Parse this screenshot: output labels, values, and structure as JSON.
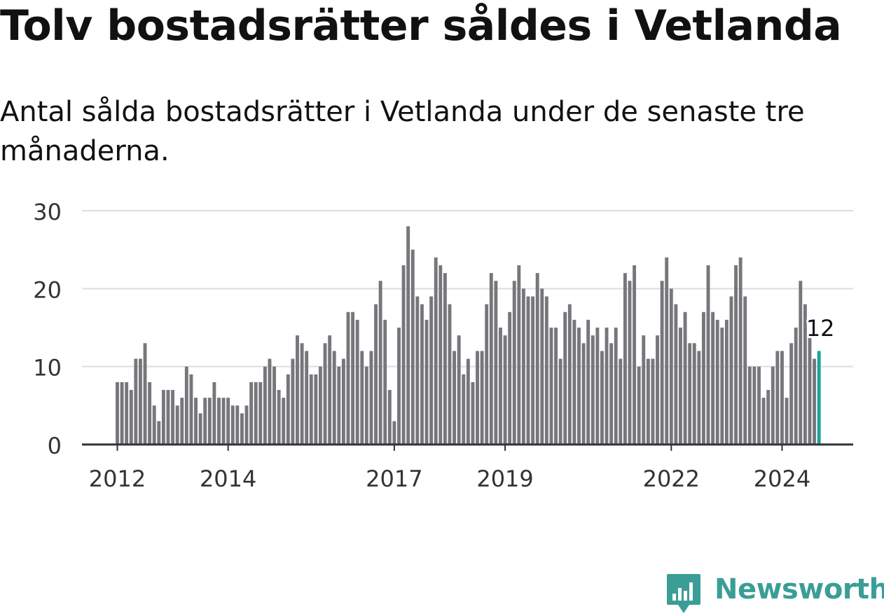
{
  "title": "Tolv bostadsrätter såldes i Vetlanda",
  "subtitle": "Antal sålda bostadsrätter i Vetlanda under de senaste tre månaderna.",
  "brand": {
    "name": "Newsworthy",
    "color": "#3a9e97"
  },
  "colors": {
    "bar": "#77767b",
    "highlight": "#1aa39a",
    "grid": "#dddddd",
    "axis": "#333333"
  },
  "chart_data": {
    "type": "bar",
    "x_start": "2012-01",
    "frequency": "monthly",
    "ylim": [
      0,
      30
    ],
    "yticks": [
      0,
      10,
      20,
      30
    ],
    "xticks": [
      {
        "label": "2012",
        "index": 0
      },
      {
        "label": "2014",
        "index": 24
      },
      {
        "label": "2017",
        "index": 60
      },
      {
        "label": "2019",
        "index": 84
      },
      {
        "label": "2022",
        "index": 120
      },
      {
        "label": "2024",
        "index": 144
      }
    ],
    "values": [
      8,
      8,
      8,
      7,
      11,
      11,
      13,
      8,
      5,
      3,
      7,
      7,
      7,
      5,
      6,
      10,
      9,
      6,
      4,
      6,
      6,
      8,
      6,
      6,
      6,
      5,
      5,
      4,
      5,
      8,
      8,
      8,
      10,
      11,
      10,
      7,
      6,
      9,
      11,
      14,
      13,
      12,
      9,
      9,
      10,
      13,
      14,
      12,
      10,
      11,
      17,
      17,
      16,
      12,
      10,
      12,
      18,
      21,
      16,
      7,
      3,
      15,
      23,
      28,
      25,
      19,
      18,
      16,
      19,
      24,
      23,
      22,
      18,
      12,
      14,
      9,
      11,
      8,
      12,
      12,
      18,
      22,
      21,
      15,
      14,
      17,
      21,
      23,
      20,
      19,
      19,
      22,
      20,
      19,
      15,
      15,
      11,
      17,
      18,
      16,
      15,
      13,
      16,
      14,
      15,
      12,
      15,
      13,
      15,
      11,
      22,
      21,
      23,
      10,
      14,
      11,
      11,
      14,
      21,
      24,
      20,
      18,
      15,
      17,
      13,
      13,
      12,
      17,
      23,
      17,
      16,
      15,
      16,
      19,
      23,
      24,
      19,
      10,
      10,
      10,
      6,
      7,
      10,
      12,
      12,
      6,
      13,
      15,
      21,
      18,
      14,
      11,
      12
    ],
    "highlight_index": 152,
    "highlight_label": "12"
  }
}
